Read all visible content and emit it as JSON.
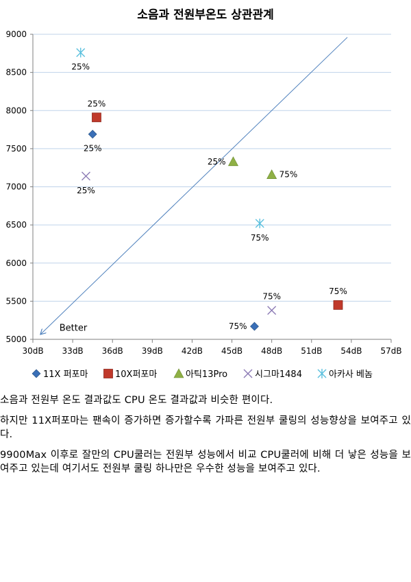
{
  "chart_data": {
    "type": "scatter",
    "title": "소음과 전원부온도 상관관계",
    "xlabel": "",
    "ylabel": "",
    "xlim": [
      30,
      57
    ],
    "ylim": [
      5000,
      9000
    ],
    "x_ticks": [
      30,
      33,
      36,
      39,
      42,
      45,
      48,
      51,
      54,
      57
    ],
    "x_tick_labels": [
      "30dB",
      "33dB",
      "36dB",
      "39dB",
      "42dB",
      "45dB",
      "48dB",
      "51dB",
      "54dB",
      "57dB"
    ],
    "y_ticks": [
      5000,
      5500,
      6000,
      6500,
      7000,
      7500,
      8000,
      8500,
      9000
    ],
    "y_tick_labels": [
      "5000",
      "5500",
      "6000",
      "6500",
      "7000",
      "7500",
      "8000",
      "8500",
      "9000"
    ],
    "grid": "horizontal",
    "legend_position": "bottom",
    "series": [
      {
        "name": "11X 퍼포마",
        "marker": "diamond",
        "color": "#3A6FB7",
        "points": [
          {
            "x": 34.5,
            "y": 7690,
            "label": "25%",
            "label_pos": "below"
          },
          {
            "x": 46.7,
            "y": 5170,
            "label": "75%",
            "label_pos": "left"
          }
        ]
      },
      {
        "name": "10X퍼포마",
        "marker": "square",
        "color": "#C0392B",
        "points": [
          {
            "x": 34.8,
            "y": 7910,
            "label": "25%",
            "label_pos": "above"
          },
          {
            "x": 53.0,
            "y": 5450,
            "label": "75%",
            "label_pos": "above"
          }
        ]
      },
      {
        "name": "아틱13Pro",
        "marker": "triangle",
        "color": "#8FB045",
        "points": [
          {
            "x": 45.1,
            "y": 7330,
            "label": "25%",
            "label_pos": "left"
          },
          {
            "x": 48.0,
            "y": 7160,
            "label": "75%",
            "label_pos": "right"
          }
        ]
      },
      {
        "name": "시그마1484",
        "marker": "x",
        "color": "#8C7BB5",
        "points": [
          {
            "x": 34.0,
            "y": 7140,
            "label": "25%",
            "label_pos": "below"
          },
          {
            "x": 48.0,
            "y": 5380,
            "label": "75%",
            "label_pos": "above"
          }
        ]
      },
      {
        "name": "아카사 베놈",
        "marker": "star",
        "color": "#5BC0DE",
        "points": [
          {
            "x": 33.6,
            "y": 8760,
            "label": "25%",
            "label_pos": "below"
          },
          {
            "x": 47.1,
            "y": 6520,
            "label": "75%",
            "label_pos": "below"
          }
        ]
      }
    ],
    "annotation": {
      "text": "Better",
      "arrow_from": {
        "x": 53.7,
        "y": 8960
      },
      "arrow_to": {
        "x": 30.6,
        "y": 5070
      },
      "text_at": {
        "x": 32.0,
        "y": 5150
      },
      "color": "#4F81BD"
    }
  },
  "paragraphs": [
    "소음과 전원부 온도 결과값도 CPU 온도 결과값과 비슷한 편이다.",
    "하지만 11X퍼포마는 팬속이 증가하면 증가할수록 가파른 전원부 쿨링의 성능향상을 보여주고 있다.",
    "9900Max 이후로 잘만의 CPU쿨러는 전원부 성능에서 비교 CPU쿨러에 비해 더 낳은 성능을 보여주고 있는데 여기서도 전원부 쿨링 하나만은 우수한 성능을 보여주고 있다."
  ]
}
